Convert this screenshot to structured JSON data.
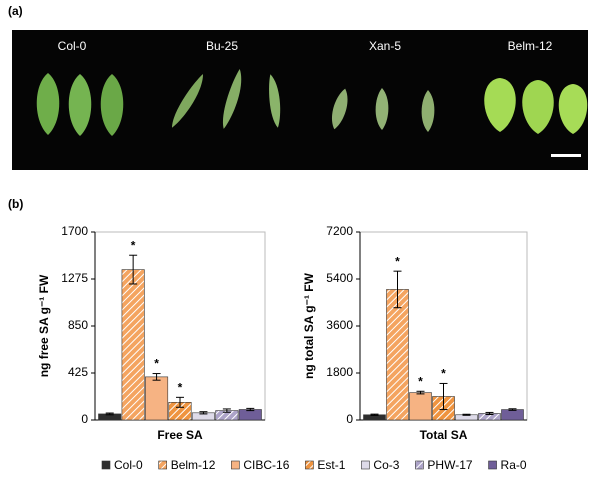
{
  "panel_a": {
    "label": "(a)",
    "photo_labels": [
      "Col-0",
      "Bu-25",
      "Xan-5",
      "Belm-12"
    ]
  },
  "panel_b": {
    "label": "(b)"
  },
  "legend": {
    "names": [
      "Col-0",
      "Belm-12",
      "CIBC-16",
      "Est-1",
      "Co-3",
      "PHW-17",
      "Ra-0"
    ],
    "colors": [
      "#2e2e2e",
      "#f4a460",
      "#f6b383",
      "#ef9440",
      "#dedbe9",
      "#aca3c8",
      "#6f5e98"
    ],
    "hatch": [
      false,
      true,
      false,
      true,
      false,
      true,
      false
    ]
  },
  "chart_data": [
    {
      "type": "bar",
      "xlabel": "Free SA",
      "ylabel": "ng free SA g⁻¹ FW",
      "values": [
        55,
        1360,
        390,
        160,
        65,
        85,
        95
      ],
      "errors": [
        8,
        130,
        30,
        45,
        10,
        15,
        10
      ],
      "significance": [
        null,
        "*",
        "*",
        "*",
        null,
        null,
        null
      ],
      "ylim": [
        0,
        1700
      ],
      "yticks": [
        0,
        425,
        850,
        1275,
        1700
      ]
    },
    {
      "type": "bar",
      "xlabel": "Total SA",
      "ylabel": "ng total SA g⁻¹ FW",
      "values": [
        200,
        5000,
        1050,
        900,
        200,
        250,
        400
      ],
      "errors": [
        25,
        700,
        50,
        500,
        20,
        40,
        30
      ],
      "significance": [
        null,
        "*",
        "*",
        "*",
        null,
        null,
        null
      ],
      "ylim": [
        0,
        7200
      ],
      "yticks": [
        0,
        1800,
        3600,
        5400,
        7200
      ]
    }
  ]
}
